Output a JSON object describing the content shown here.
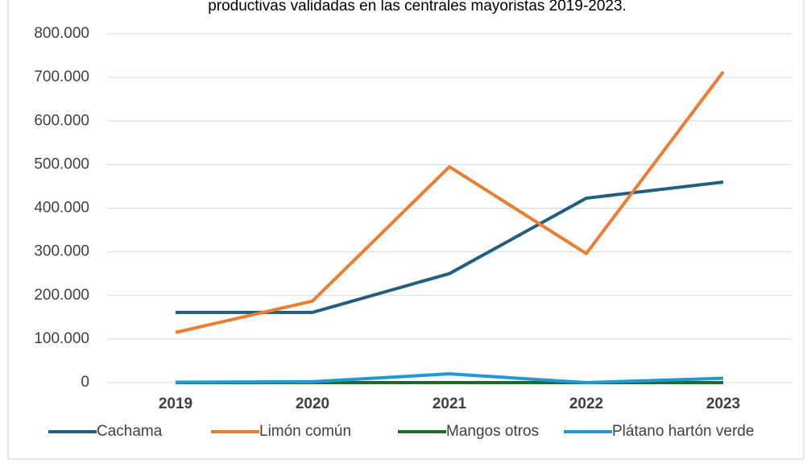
{
  "chart_data": {
    "type": "line",
    "title": "productivas validadas en las centrales mayoristas 2019-2023.",
    "categories": [
      "2019",
      "2020",
      "2021",
      "2022",
      "2023"
    ],
    "series": [
      {
        "name": "Cachama",
        "color": "#1f5f80",
        "values": [
          161000,
          161000,
          250000,
          423000,
          460000
        ]
      },
      {
        "name": "Limón común",
        "color": "#ed7d31",
        "values": [
          115000,
          187000,
          495000,
          296000,
          713000
        ]
      },
      {
        "name": "Mangos otros",
        "color": "#1e6b2a",
        "values": [
          0,
          0,
          0,
          0,
          0
        ]
      },
      {
        "name": "Plátano hartón verde",
        "color": "#1e9bd7",
        "values": [
          1000,
          2000,
          20000,
          0,
          10000
        ]
      }
    ],
    "ylim": [
      0,
      800000
    ],
    "yticks": [
      0,
      {
        "value": 100000,
        "label": "100.000"
      },
      {
        "value": 200000,
        "label": "200.000"
      },
      {
        "value": 300000,
        "label": "300.000"
      },
      {
        "value": 400000,
        "label": "400.000"
      },
      {
        "value": 500000,
        "label": "500.000"
      },
      {
        "value": 600000,
        "label": "600.000"
      },
      {
        "value": 700000,
        "label": "700.000"
      },
      {
        "value": 800000,
        "label": "800.000"
      }
    ],
    "grid": true,
    "legend": "bottom"
  }
}
